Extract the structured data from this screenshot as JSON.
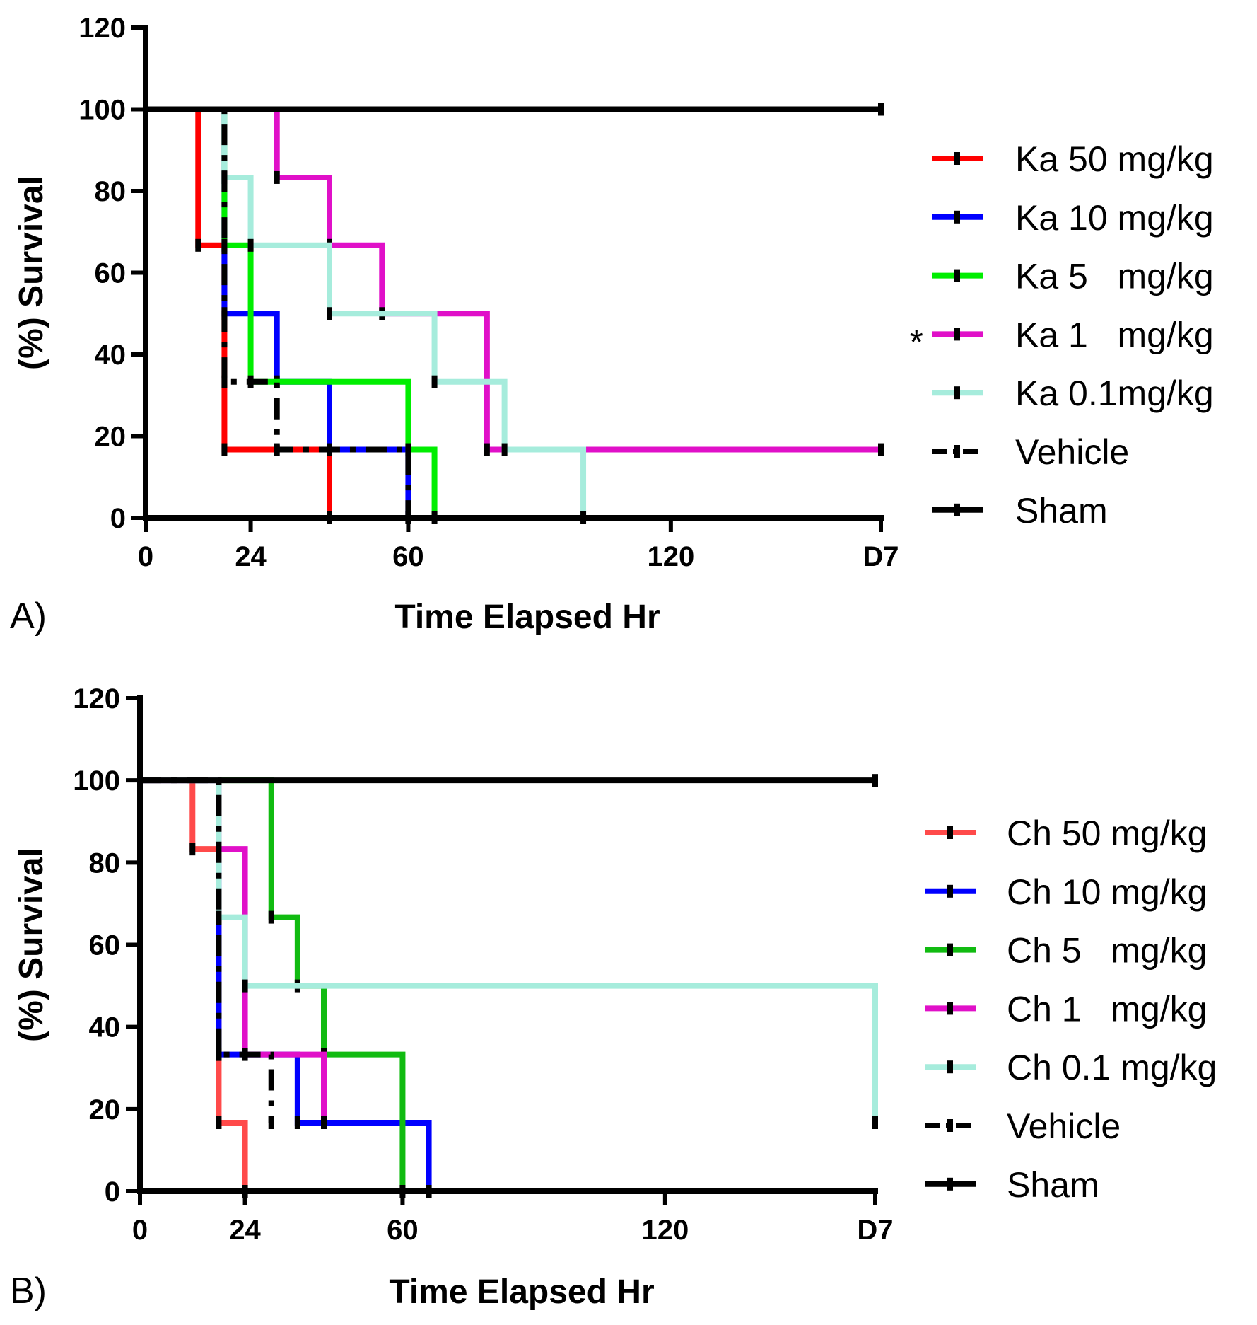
{
  "colors": {
    "red": "#ff0000",
    "blue": "#0000ff",
    "bright_green": "#00ee00",
    "green": "#11bb11",
    "magenta": "#e010c8",
    "cyan": "#a6ecdc",
    "salmon": "#ff4a4a",
    "black": "#000000"
  },
  "chart_data": [
    {
      "type": "line",
      "subtype": "kaplan-meier-step",
      "panel_label": "A)",
      "title": "",
      "xlabel": "Time Elapsed Hr",
      "ylabel": "(%) Survival",
      "xlim": [
        0,
        168
      ],
      "ylim": [
        0,
        120
      ],
      "x_ticks": [
        0,
        24,
        60,
        120,
        168
      ],
      "x_tick_labels": [
        "0",
        "24",
        "60",
        "120",
        "D7"
      ],
      "y_ticks": [
        0,
        20,
        40,
        60,
        80,
        100,
        120
      ],
      "y_tick_labels": [
        "0",
        "20",
        "40",
        "60",
        "80",
        "100",
        "120"
      ],
      "legend_position": "right",
      "significance_marker": "*",
      "significance_series": 3,
      "series": [
        {
          "name": "Ka 50 mg/kg",
          "color": "#ff0000",
          "dashed": false,
          "x": [
            0,
            12,
            18,
            42
          ],
          "y": [
            100,
            66.7,
            16.7,
            0
          ]
        },
        {
          "name": "Ka 10 mg/kg",
          "color": "#0000ff",
          "dashed": false,
          "x": [
            0,
            18,
            30,
            42,
            60
          ],
          "y": [
            100,
            50,
            33.3,
            16.7,
            0
          ]
        },
        {
          "name": "Ka 5   mg/kg",
          "color": "#00ee00",
          "dashed": false,
          "x": [
            0,
            18,
            24,
            60,
            66
          ],
          "y": [
            100,
            66.7,
            33.3,
            16.7,
            0
          ]
        },
        {
          "name": "Ka 1   mg/kg",
          "color": "#e010c8",
          "dashed": false,
          "x": [
            0,
            30,
            42,
            54,
            78,
            168
          ],
          "y": [
            100,
            83.3,
            66.7,
            50,
            16.7,
            16.7
          ]
        },
        {
          "name": "Ka 0.1mg/kg",
          "color": "#a6ecdc",
          "dashed": false,
          "x": [
            0,
            18,
            24,
            42,
            66,
            82,
            100
          ],
          "y": [
            100,
            83.3,
            66.7,
            50,
            33.3,
            16.7,
            0
          ]
        },
        {
          "name": "Vehicle",
          "color": "#000000",
          "dashed": true,
          "x": [
            0,
            18,
            30,
            60
          ],
          "y": [
            100,
            33.3,
            16.7,
            0
          ]
        },
        {
          "name": "Sham",
          "color": "#000000",
          "dashed": false,
          "x": [
            0,
            168
          ],
          "y": [
            100,
            100
          ]
        }
      ]
    },
    {
      "type": "line",
      "subtype": "kaplan-meier-step",
      "panel_label": "B)",
      "title": "",
      "xlabel": "Time Elapsed Hr",
      "ylabel": "(%) Survival",
      "xlim": [
        0,
        168
      ],
      "ylim": [
        0,
        120
      ],
      "x_ticks": [
        0,
        24,
        60,
        120,
        168
      ],
      "x_tick_labels": [
        "0",
        "24",
        "60",
        "120",
        "D7"
      ],
      "y_ticks": [
        0,
        20,
        40,
        60,
        80,
        100,
        120
      ],
      "y_tick_labels": [
        "0",
        "20",
        "40",
        "60",
        "80",
        "100",
        "120"
      ],
      "legend_position": "right",
      "series": [
        {
          "name": "Ch 50 mg/kg",
          "color": "#ff4a4a",
          "dashed": false,
          "x": [
            0,
            12,
            18,
            24
          ],
          "y": [
            100,
            83.3,
            16.7,
            0
          ]
        },
        {
          "name": "Ch 10 mg/kg",
          "color": "#0000ff",
          "dashed": false,
          "x": [
            0,
            18,
            36,
            66
          ],
          "y": [
            100,
            33.3,
            16.7,
            0
          ]
        },
        {
          "name": "Ch 5   mg/kg",
          "color": "#11bb11",
          "dashed": false,
          "x": [
            0,
            30,
            36,
            42,
            60
          ],
          "y": [
            100,
            66.7,
            50,
            33.3,
            0
          ]
        },
        {
          "name": "Ch 1   mg/kg",
          "color": "#e010c8",
          "dashed": false,
          "x": [
            0,
            18,
            24,
            42
          ],
          "y": [
            100,
            83.3,
            33.3,
            16.7
          ]
        },
        {
          "name": "Ch 0.1 mg/kg",
          "color": "#a6ecdc",
          "dashed": false,
          "x": [
            0,
            18,
            24,
            168
          ],
          "y": [
            100,
            66.7,
            50,
            16.7
          ]
        },
        {
          "name": "Vehicle",
          "color": "#000000",
          "dashed": true,
          "x": [
            0,
            18,
            30
          ],
          "y": [
            100,
            33.3,
            16.7
          ]
        },
        {
          "name": "Sham",
          "color": "#000000",
          "dashed": false,
          "x": [
            0,
            168
          ],
          "y": [
            100,
            100
          ]
        }
      ]
    }
  ]
}
